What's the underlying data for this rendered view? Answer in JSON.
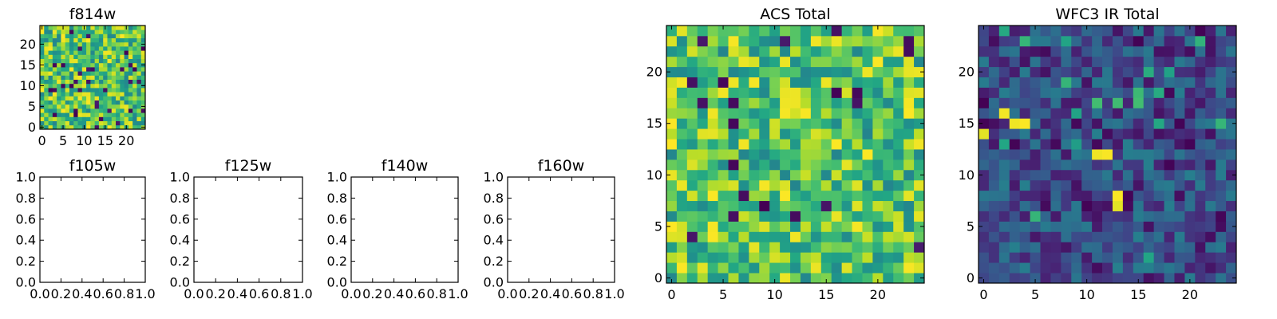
{
  "chart_data": [
    {
      "type": "heatmap",
      "title": "f814w",
      "colormap": "viridis",
      "xlim": [
        -0.5,
        24.5
      ],
      "ylim": [
        -0.5,
        24.5
      ],
      "xticks": [
        "0",
        "5",
        "10",
        "15",
        "20"
      ],
      "yticks": [
        "0",
        "5",
        "10",
        "15",
        "20"
      ],
      "grid": "25x25 noise image",
      "z_seed": 814,
      "z_style": "uniform-bright"
    },
    {
      "type": "heatmap",
      "title": "f105w",
      "empty": true,
      "xlim": [
        0,
        1
      ],
      "ylim": [
        0,
        1
      ],
      "xticks": [
        "0.0",
        "0.2",
        "0.4",
        "0.6",
        "0.8",
        "1.0"
      ],
      "yticks": [
        "0.0",
        "0.2",
        "0.4",
        "0.6",
        "0.8",
        "1.0"
      ]
    },
    {
      "type": "heatmap",
      "title": "f125w",
      "empty": true,
      "xlim": [
        0,
        1
      ],
      "ylim": [
        0,
        1
      ],
      "xticks": [
        "0.0",
        "0.2",
        "0.4",
        "0.6",
        "0.8",
        "1.0"
      ],
      "yticks": [
        "0.0",
        "0.2",
        "0.4",
        "0.6",
        "0.8",
        "1.0"
      ]
    },
    {
      "type": "heatmap",
      "title": "f140w",
      "empty": true,
      "xlim": [
        0,
        1
      ],
      "ylim": [
        0,
        1
      ],
      "xticks": [
        "0.0",
        "0.2",
        "0.4",
        "0.6",
        "0.8",
        "1.0"
      ],
      "yticks": [
        "0.0",
        "0.2",
        "0.4",
        "0.6",
        "0.8",
        "1.0"
      ]
    },
    {
      "type": "heatmap",
      "title": "f160w",
      "empty": true,
      "xlim": [
        0,
        1
      ],
      "ylim": [
        0,
        1
      ],
      "xticks": [
        "0.0",
        "0.2",
        "0.4",
        "0.6",
        "0.8",
        "1.0"
      ],
      "yticks": [
        "0.0",
        "0.2",
        "0.4",
        "0.6",
        "0.8",
        "1.0"
      ]
    },
    {
      "type": "heatmap",
      "title": "ACS Total",
      "colormap": "viridis",
      "xlim": [
        -0.5,
        24.5
      ],
      "ylim": [
        -0.5,
        24.5
      ],
      "xticks": [
        "0",
        "5",
        "10",
        "15",
        "20"
      ],
      "yticks": [
        "0",
        "5",
        "10",
        "15",
        "20"
      ],
      "grid": "25x25 noise image",
      "z_seed": 2024,
      "z_style": "uniform-bright"
    },
    {
      "type": "heatmap",
      "title": "WFC3 IR Total",
      "colormap": "viridis",
      "xlim": [
        -0.5,
        24.5
      ],
      "ylim": [
        -0.5,
        24.5
      ],
      "xticks": [
        "0",
        "5",
        "10",
        "15",
        "20"
      ],
      "yticks": [
        "0",
        "5",
        "10",
        "15",
        "20"
      ],
      "grid": "25x25 noise image",
      "z_seed": 3077,
      "z_style": "dark-with-hotspots"
    }
  ]
}
